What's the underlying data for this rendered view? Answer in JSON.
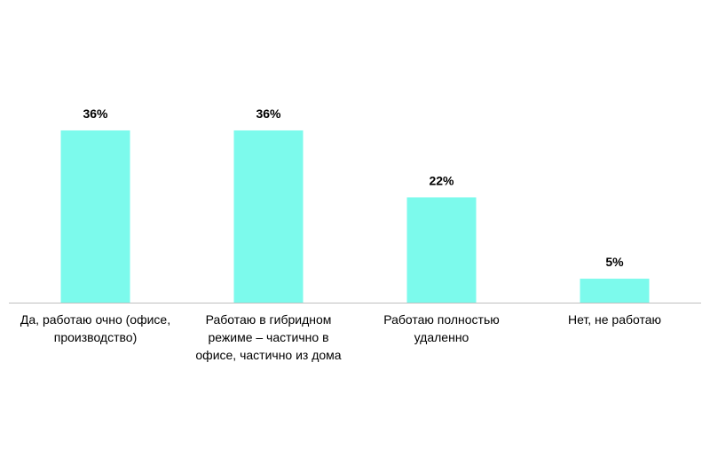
{
  "chart_data": {
    "type": "bar",
    "categories": [
      "Да, работаю очно (офисе, производство)",
      "Работаю в гибридном режиме – частично в офисе, частично из дома",
      "Работаю полностью удаленно",
      "Нет, не работаю"
    ],
    "values": [
      36,
      36,
      22,
      5
    ],
    "value_labels": [
      "36%",
      "36%",
      "22%",
      "5%"
    ],
    "color": "#7cfaec"
  }
}
